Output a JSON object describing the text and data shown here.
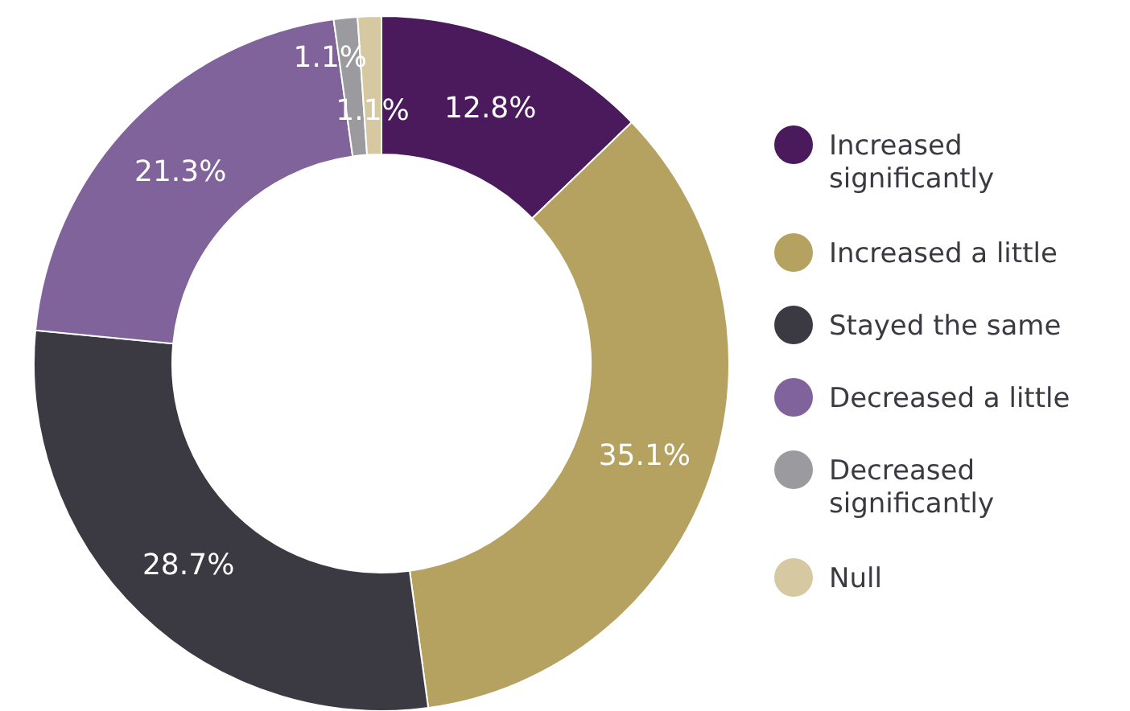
{
  "chart_data": {
    "type": "donut",
    "categories": [
      "Increased significantly",
      "Increased a little",
      "Stayed the same",
      "Decreased a little",
      "Decreased significantly",
      "Null"
    ],
    "values": [
      12.8,
      35.1,
      28.7,
      21.3,
      1.1,
      1.1
    ],
    "colors": [
      "#4a1a5c",
      "#b5a160",
      "#3b3a42",
      "#80639a",
      "#9a9a9f",
      "#d6c8a0"
    ],
    "value_labels": [
      "12.8%",
      "35.1%",
      "28.7%",
      "21.3%",
      "1.1%",
      "1.1%"
    ],
    "legend": "right"
  }
}
